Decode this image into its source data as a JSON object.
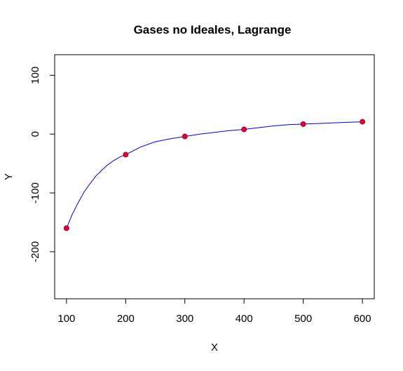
{
  "chart_data": {
    "type": "line",
    "title": "Gases no Ideales, Lagrange",
    "xlabel": "X",
    "ylabel": "Y",
    "xlim": [
      80,
      620
    ],
    "ylim": [
      -280,
      135
    ],
    "xticks": [
      100,
      200,
      300,
      400,
      500,
      600
    ],
    "yticks": [
      -200,
      -100,
      0,
      100
    ],
    "grid": false,
    "legend": "none",
    "series": [
      {
        "kind": "points",
        "color": "#e8002a",
        "x": [
          100,
          200,
          300,
          400,
          500,
          600
        ],
        "y": [
          -160,
          -35,
          -4,
          8,
          17,
          21
        ]
      },
      {
        "kind": "line",
        "color": "#0000cc",
        "x": [
          100,
          110,
          120,
          130,
          140,
          150,
          160,
          170,
          180,
          190,
          200,
          225,
          250,
          275,
          300,
          325,
          350,
          375,
          400,
          425,
          450,
          475,
          500,
          525,
          550,
          575,
          600
        ],
        "y": [
          -160,
          -136,
          -116,
          -98,
          -84,
          -71,
          -61,
          -52,
          -45,
          -39,
          -35,
          -22,
          -13,
          -8,
          -4,
          0,
          3,
          6,
          8,
          11,
          14,
          16,
          17,
          18,
          19,
          20,
          21
        ]
      }
    ]
  }
}
